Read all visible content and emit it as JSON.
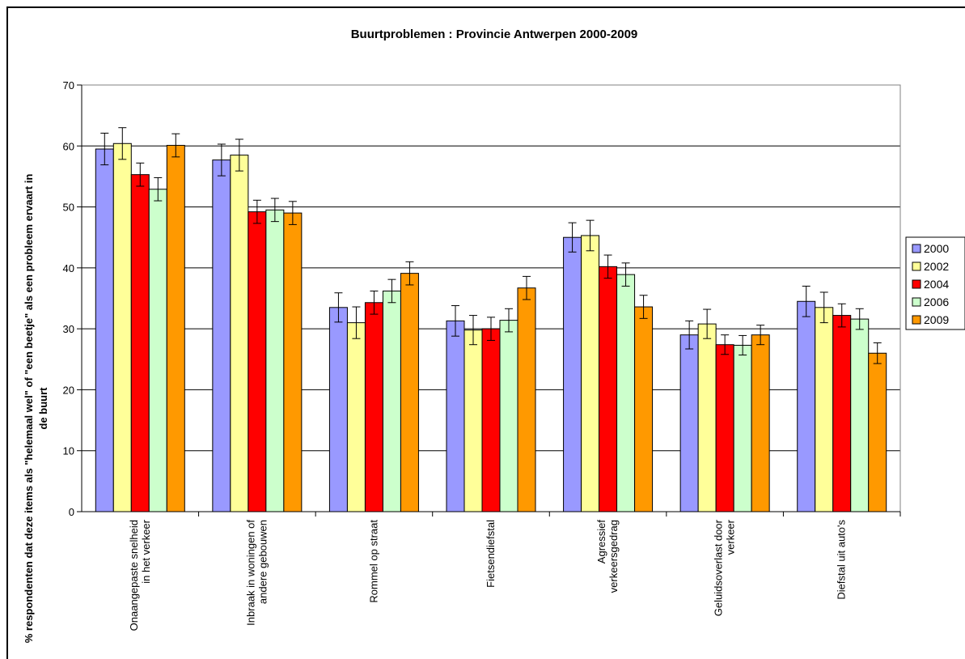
{
  "chart_data": {
    "type": "bar",
    "title": "Buurtproblemen : Provincie Antwerpen 2000-2009",
    "ylabel_lines": [
      "% respondenten dat deze items als \"helemaal wel\" of \"een beetje\" als een probleem ervaart in",
      "de buurt"
    ],
    "xlabel": "",
    "ylim": [
      0,
      70
    ],
    "yticks": [
      0,
      10,
      20,
      30,
      40,
      50,
      60,
      70
    ],
    "grid": true,
    "legend_position": "right",
    "categories": [
      [
        "Onaangepaste snelheid",
        "in het verkeer"
      ],
      [
        "Inbraak in woningen of",
        "andere gebouwen"
      ],
      [
        "Rommel op straat"
      ],
      [
        "Fietsendiefstal"
      ],
      [
        "Agressief",
        "verkeersgedrag"
      ],
      [
        "Geluidsoverlast door",
        "verkeer"
      ],
      [
        "Diefstal uit auto's"
      ]
    ],
    "series": [
      {
        "name": "2000",
        "color": "#9999ff",
        "values": [
          59.5,
          57.7,
          33.5,
          31.3,
          45.0,
          29.0,
          34.5
        ],
        "err": [
          2.6,
          2.6,
          2.4,
          2.5,
          2.4,
          2.3,
          2.5
        ]
      },
      {
        "name": "2002",
        "color": "#ffff99",
        "values": [
          60.4,
          58.5,
          31.0,
          29.8,
          45.3,
          30.8,
          33.5
        ],
        "err": [
          2.6,
          2.6,
          2.6,
          2.4,
          2.5,
          2.4,
          2.5
        ]
      },
      {
        "name": "2004",
        "color": "#ff0000",
        "values": [
          55.3,
          49.2,
          34.3,
          30.0,
          40.2,
          27.4,
          32.2
        ],
        "err": [
          1.9,
          1.9,
          1.9,
          1.9,
          1.9,
          1.6,
          1.9
        ]
      },
      {
        "name": "2006",
        "color": "#ccffcc",
        "values": [
          52.9,
          49.5,
          36.2,
          31.4,
          38.9,
          27.3,
          31.6
        ],
        "err": [
          1.9,
          1.9,
          1.9,
          1.9,
          1.9,
          1.6,
          1.7
        ]
      },
      {
        "name": "2009",
        "color": "#ff9900",
        "values": [
          60.1,
          49.0,
          39.1,
          36.7,
          33.6,
          29.0,
          26.0
        ],
        "err": [
          1.9,
          1.9,
          1.9,
          1.9,
          1.9,
          1.6,
          1.7
        ]
      }
    ]
  }
}
